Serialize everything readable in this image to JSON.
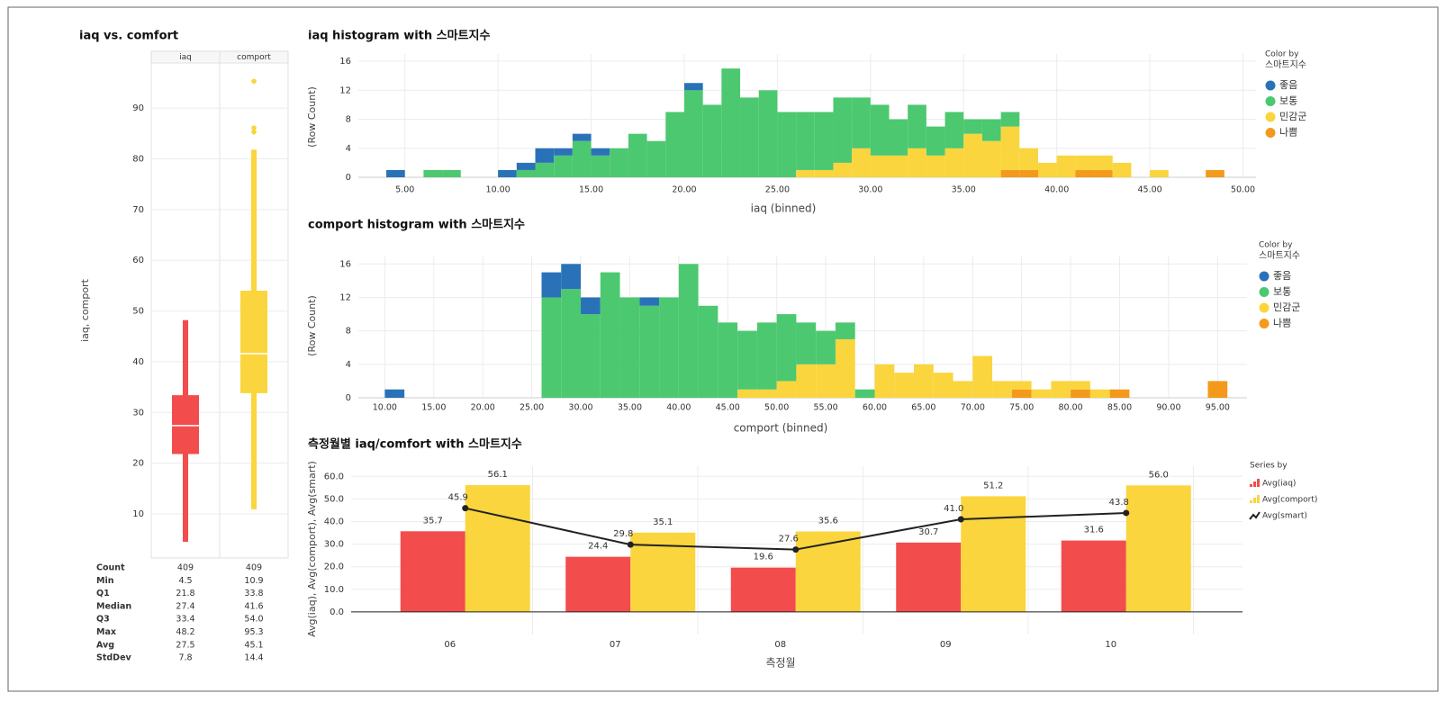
{
  "chart_data": [
    {
      "type": "box",
      "title": "iaq vs. comfort",
      "y_label": "iaq, comport",
      "categories": [
        "iaq",
        "comport"
      ],
      "colors": [
        "#f24c4c",
        "#fad53d"
      ],
      "boxes": [
        {
          "whisker_low": 4.5,
          "q1": 21.8,
          "median": 27.4,
          "q3": 33.4,
          "whisker_high": 48.2,
          "outliers": []
        },
        {
          "whisker_low": 10.9,
          "q1": 33.8,
          "median": 41.6,
          "q3": 54.0,
          "whisker_high": 81.8,
          "outliers": [
            85.3,
            86.1,
            95.3
          ]
        }
      ],
      "ylim": [
        1.3,
        98.9
      ],
      "yticks": [
        10,
        20,
        30,
        40,
        50,
        60,
        70,
        80,
        90
      ],
      "grid": true,
      "stats_table": {
        "rows": [
          [
            "Count",
            "409",
            "409"
          ],
          [
            "Min",
            "4.5",
            "10.9"
          ],
          [
            "Q1",
            "21.8",
            "33.8"
          ],
          [
            "Median",
            "27.4",
            "41.6"
          ],
          [
            "Q3",
            "33.4",
            "54.0"
          ],
          [
            "Max",
            "48.2",
            "95.3"
          ],
          [
            "Avg",
            "27.5",
            "45.1"
          ],
          [
            "StdDev",
            "7.8",
            "14.4"
          ]
        ]
      }
    },
    {
      "type": "histogram",
      "title": "iaq histogram with 스마트지수",
      "x_label": "iaq (binned)",
      "y_label": "(Row Count)",
      "legend_title": "Color by",
      "legend_field": "스마트지수",
      "legend": "right",
      "bins": [
        4,
        5,
        6,
        7,
        8,
        9,
        10,
        11,
        12,
        13,
        14,
        15,
        16,
        17,
        18,
        19,
        20,
        21,
        22,
        23,
        24,
        25,
        26,
        27,
        28,
        29,
        30,
        31,
        32,
        33,
        34,
        35,
        36,
        37,
        38,
        39,
        40,
        41,
        42,
        43,
        44,
        45,
        46,
        47,
        48,
        49,
        50
      ],
      "series": [
        {
          "name": "좋음",
          "color": "#2a72b8",
          "values": [
            1,
            0,
            0,
            0,
            0,
            0,
            1,
            1,
            2,
            1,
            1,
            1,
            0,
            0,
            0,
            0,
            1,
            0,
            0,
            0,
            0,
            0,
            0,
            0,
            0,
            0,
            0,
            0,
            0,
            0,
            0,
            0,
            0,
            0,
            0,
            0,
            0,
            0,
            0,
            0,
            0,
            0,
            0,
            0,
            0,
            0
          ]
        },
        {
          "name": "보통",
          "color": "#4cc870",
          "values": [
            0,
            0,
            1,
            1,
            0,
            0,
            0,
            1,
            2,
            3,
            5,
            3,
            4,
            6,
            5,
            9,
            12,
            10,
            15,
            11,
            12,
            9,
            8,
            8,
            9,
            7,
            7,
            5,
            6,
            4,
            5,
            2,
            3,
            2,
            0,
            0,
            0,
            0,
            0,
            0,
            0,
            0,
            0,
            0,
            0,
            0
          ]
        },
        {
          "name": "민감군",
          "color": "#fad53d",
          "values": [
            0,
            0,
            0,
            0,
            0,
            0,
            0,
            0,
            0,
            0,
            0,
            0,
            0,
            0,
            0,
            0,
            0,
            0,
            0,
            0,
            0,
            0,
            1,
            1,
            2,
            4,
            3,
            3,
            4,
            3,
            4,
            6,
            5,
            6,
            3,
            2,
            3,
            2,
            2,
            2,
            0,
            1,
            0,
            0,
            0,
            0
          ]
        },
        {
          "name": "나쁨",
          "color": "#f39a1c",
          "values": [
            0,
            0,
            0,
            0,
            0,
            0,
            0,
            0,
            0,
            0,
            0,
            0,
            0,
            0,
            0,
            0,
            0,
            0,
            0,
            0,
            0,
            0,
            0,
            0,
            0,
            0,
            0,
            0,
            0,
            0,
            0,
            0,
            0,
            1,
            1,
            0,
            0,
            1,
            1,
            0,
            0,
            0,
            0,
            0,
            1,
            0
          ]
        }
      ],
      "xlim": [
        2.5,
        50.7
      ],
      "xticks": [
        {
          "value": 5,
          "label": "5.00"
        },
        {
          "value": 10,
          "label": "10.00"
        },
        {
          "value": 15,
          "label": "15.00"
        },
        {
          "value": 20,
          "label": "20.00"
        },
        {
          "value": 25,
          "label": "25.00"
        },
        {
          "value": 30,
          "label": "30.00"
        },
        {
          "value": 35,
          "label": "35.00"
        },
        {
          "value": 40,
          "label": "40.00"
        },
        {
          "value": 45,
          "label": "45.00"
        },
        {
          "value": 50,
          "label": "50.00"
        }
      ],
      "ylim": [
        0,
        17
      ],
      "yticks": [
        0,
        4,
        8,
        12,
        16
      ],
      "grid": true
    },
    {
      "type": "histogram",
      "title": "comport histogram with 스마트지수",
      "x_label": "comport (binned)",
      "y_label": "(Row Count)",
      "legend_title": "Color by",
      "legend_field": "스마트지수",
      "legend": "right",
      "bins": [
        8,
        10,
        12,
        14,
        16,
        18,
        20,
        22,
        24,
        26,
        28,
        30,
        32,
        34,
        36,
        38,
        40,
        42,
        44,
        46,
        48,
        50,
        52,
        54,
        56,
        58,
        60,
        62,
        64,
        66,
        68,
        70,
        72,
        74,
        76,
        78,
        80,
        82,
        84,
        86,
        88,
        90,
        92,
        94,
        96,
        98
      ],
      "series": [
        {
          "name": "좋음",
          "color": "#2a72b8",
          "values": [
            0,
            1,
            0,
            0,
            0,
            0,
            0,
            0,
            0,
            3,
            3,
            2,
            0,
            0,
            1,
            0,
            0,
            0,
            0,
            0,
            0,
            0,
            0,
            0,
            0,
            0,
            0,
            0,
            0,
            0,
            0,
            0,
            0,
            0,
            0,
            0,
            0,
            0,
            0,
            0,
            0,
            0,
            0,
            0,
            0
          ]
        },
        {
          "name": "보통",
          "color": "#4cc870",
          "values": [
            0,
            0,
            0,
            0,
            0,
            0,
            0,
            0,
            0,
            12,
            13,
            10,
            15,
            12,
            11,
            12,
            16,
            11,
            9,
            7,
            8,
            8,
            5,
            4,
            2,
            1,
            0,
            0,
            0,
            0,
            0,
            0,
            0,
            0,
            0,
            0,
            0,
            0,
            0,
            0,
            0,
            0,
            0,
            0,
            0
          ]
        },
        {
          "name": "민감군",
          "color": "#fad53d",
          "values": [
            0,
            0,
            0,
            0,
            0,
            0,
            0,
            0,
            0,
            0,
            0,
            0,
            0,
            0,
            0,
            0,
            0,
            0,
            0,
            1,
            1,
            2,
            4,
            4,
            7,
            0,
            4,
            3,
            4,
            3,
            2,
            5,
            2,
            1,
            1,
            2,
            1,
            1,
            0,
            0,
            0,
            0,
            0,
            0,
            0
          ]
        },
        {
          "name": "나쁨",
          "color": "#f39a1c",
          "values": [
            0,
            0,
            0,
            0,
            0,
            0,
            0,
            0,
            0,
            0,
            0,
            0,
            0,
            0,
            0,
            0,
            0,
            0,
            0,
            0,
            0,
            0,
            0,
            0,
            0,
            0,
            0,
            0,
            0,
            0,
            0,
            0,
            0,
            1,
            0,
            0,
            1,
            0,
            1,
            0,
            0,
            0,
            0,
            2,
            0
          ]
        }
      ],
      "xlim": [
        7.3,
        98
      ],
      "xticks": [
        {
          "value": 10,
          "label": "10.00"
        },
        {
          "value": 15,
          "label": "15.00"
        },
        {
          "value": 20,
          "label": "20.00"
        },
        {
          "value": 25,
          "label": "25.00"
        },
        {
          "value": 30,
          "label": "30.00"
        },
        {
          "value": 35,
          "label": "35.00"
        },
        {
          "value": 40,
          "label": "40.00"
        },
        {
          "value": 45,
          "label": "45.00"
        },
        {
          "value": 50,
          "label": "50.00"
        },
        {
          "value": 55,
          "label": "55.00"
        },
        {
          "value": 60,
          "label": "60.00"
        },
        {
          "value": 65,
          "label": "65.00"
        },
        {
          "value": 70,
          "label": "70.00"
        },
        {
          "value": 75,
          "label": "75.00"
        },
        {
          "value": 80,
          "label": "80.00"
        },
        {
          "value": 85,
          "label": "85.00"
        },
        {
          "value": 90,
          "label": "90.00"
        },
        {
          "value": 95,
          "label": "95.00"
        }
      ],
      "ylim": [
        0,
        17
      ],
      "yticks": [
        0,
        4,
        8,
        12,
        16
      ],
      "grid": true
    },
    {
      "type": "bar",
      "title": "측정월별 iaq/comfort with 스마트지수",
      "x_label": "측정월",
      "y_label": "Avg(iaq), Avg(comport), Avg(smart)",
      "legend_title": "Series by",
      "legend": "right",
      "categories": [
        "06",
        "07",
        "08",
        "09",
        "10"
      ],
      "series": [
        {
          "name": "Avg(iaq)",
          "color": "#f24c4c",
          "values": [
            35.7,
            24.4,
            19.6,
            30.7,
            31.6
          ],
          "value_labels": [
            "35.7",
            "24.4",
            "19.6",
            "30.7",
            "31.6"
          ]
        },
        {
          "name": "Avg(comport)",
          "color": "#fad53d",
          "values": [
            56.1,
            35.1,
            35.6,
            51.2,
            56.0
          ],
          "value_labels": [
            "56.1",
            "35.1",
            "35.6",
            "51.2",
            "56.0"
          ]
        },
        {
          "name": "Avg(smart)",
          "type": "line",
          "color": "#222222",
          "values": [
            45.9,
            29.8,
            27.6,
            41.0,
            43.8
          ],
          "value_labels": [
            "45.9",
            "29.8",
            "27.6",
            "41.0",
            "43.8"
          ]
        }
      ],
      "ylim": [
        -10,
        64.5
      ],
      "yticks": [
        {
          "value": 0,
          "label": "0.0"
        },
        {
          "value": 10,
          "label": "10.0"
        },
        {
          "value": 20,
          "label": "20.0"
        },
        {
          "value": 30,
          "label": "30.0"
        },
        {
          "value": 40,
          "label": "40.0"
        },
        {
          "value": 50,
          "label": "50.0"
        },
        {
          "value": 60,
          "label": "60.0"
        }
      ],
      "grid": true
    }
  ]
}
